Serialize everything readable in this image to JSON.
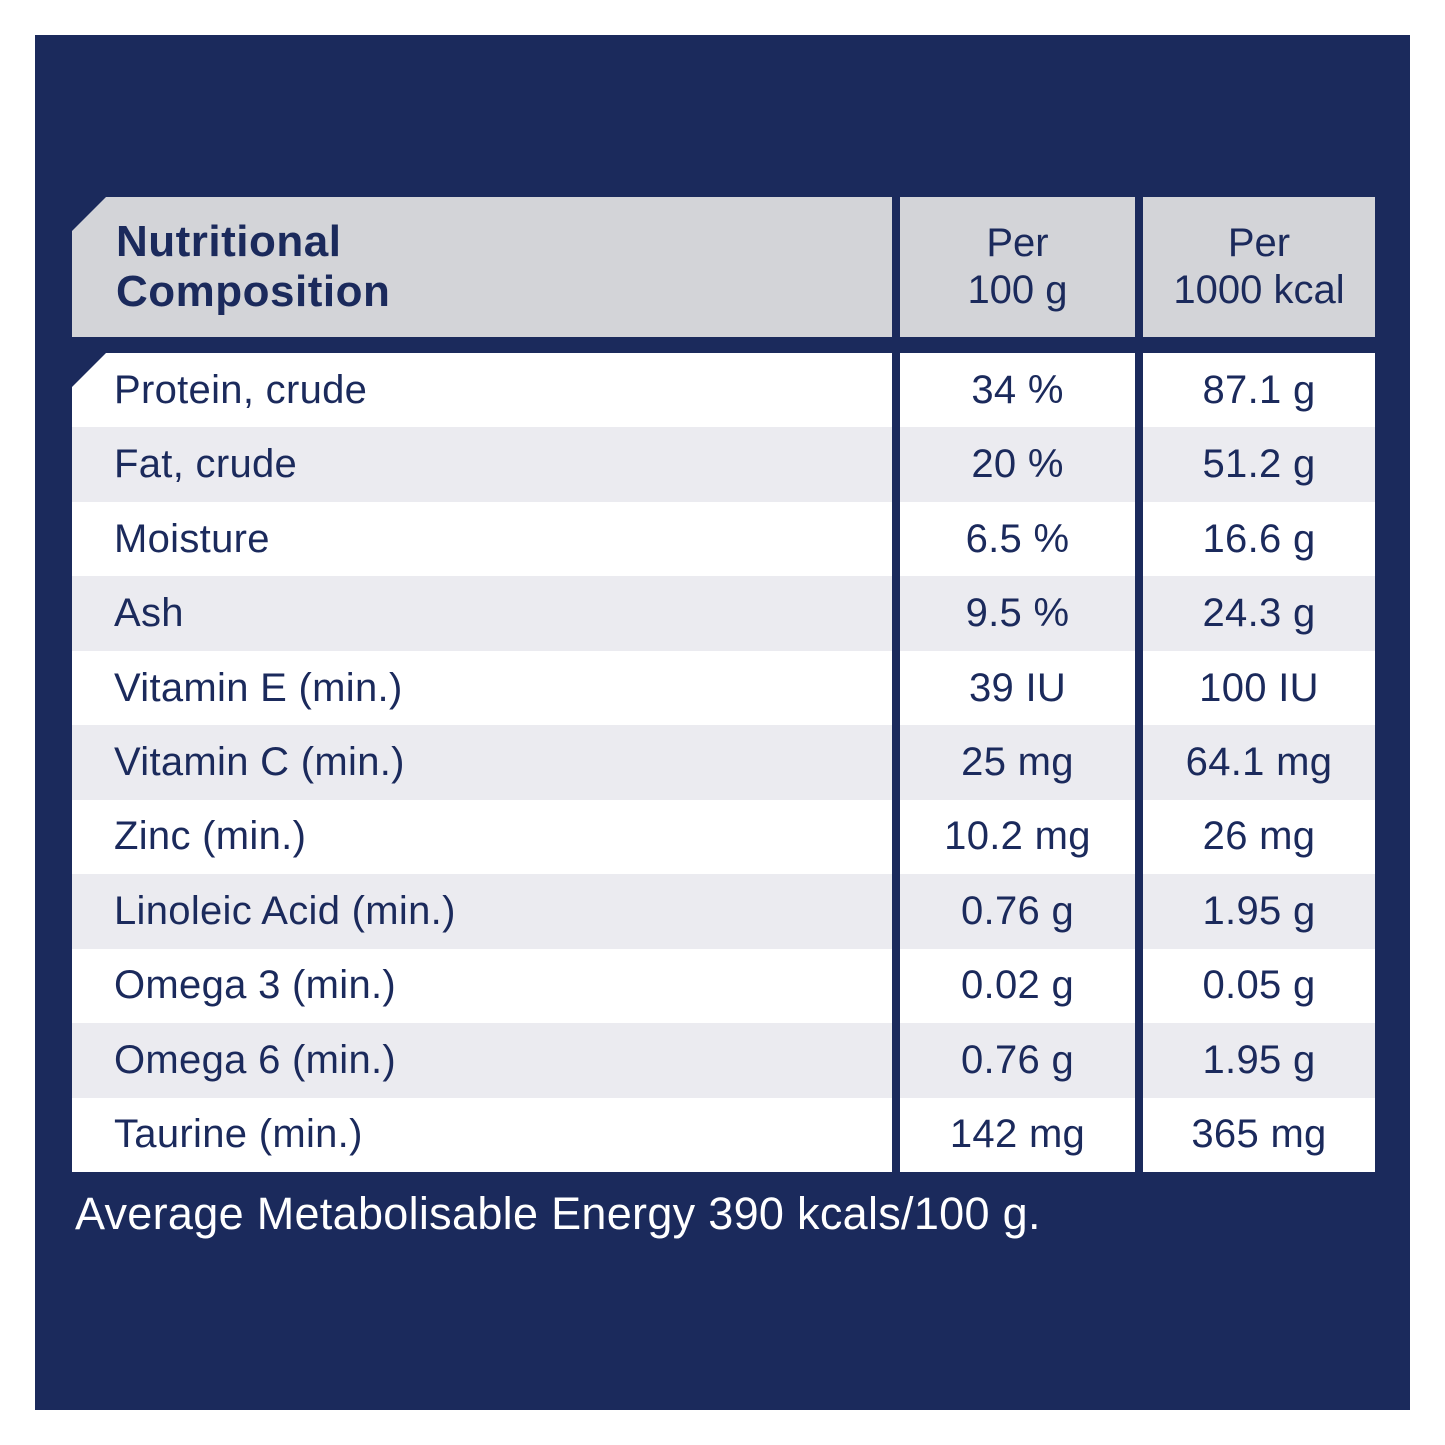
{
  "colors": {
    "navy": "#1b2a5c",
    "header-gray": "#d3d4d8",
    "row-gray": "#ebebf0",
    "white": "#ffffff",
    "text-navy": "#1b2a5c"
  },
  "table": {
    "title_line1": "Nutritional",
    "title_line2": "Composition",
    "columns": {
      "per_100g_line1": "Per",
      "per_100g_line2": "100 g",
      "per_1000kcal_line1": "Per",
      "per_1000kcal_line2": "1000 kcal"
    },
    "rows": [
      {
        "label": "Protein, crude",
        "per100g": "34 %",
        "per1000kcal": "87.1 g"
      },
      {
        "label": "Fat, crude",
        "per100g": "20 %",
        "per1000kcal": "51.2 g"
      },
      {
        "label": "Moisture",
        "per100g": "6.5 %",
        "per1000kcal": "16.6 g"
      },
      {
        "label": "Ash",
        "per100g": "9.5 %",
        "per1000kcal": "24.3 g"
      },
      {
        "label": "Vitamin E (min.)",
        "per100g": "39 IU",
        "per1000kcal": "100 IU"
      },
      {
        "label": "Vitamin C (min.)",
        "per100g": "25 mg",
        "per1000kcal": "64.1 mg"
      },
      {
        "label": "Zinc (min.)",
        "per100g": "10.2 mg",
        "per1000kcal": "26 mg"
      },
      {
        "label": "Linoleic Acid (min.)",
        "per100g": "0.76 g",
        "per1000kcal": "1.95 g"
      },
      {
        "label": "Omega 3 (min.)",
        "per100g": "0.02 g",
        "per1000kcal": "0.05 g"
      },
      {
        "label": "Omega 6 (min.)",
        "per100g": "0.76 g",
        "per1000kcal": "1.95 g"
      },
      {
        "label": "Taurine (min.)",
        "per100g": "142 mg",
        "per1000kcal": "365 mg"
      }
    ],
    "footer": "Average Metabolisable Energy 390 kcals/100 g."
  }
}
